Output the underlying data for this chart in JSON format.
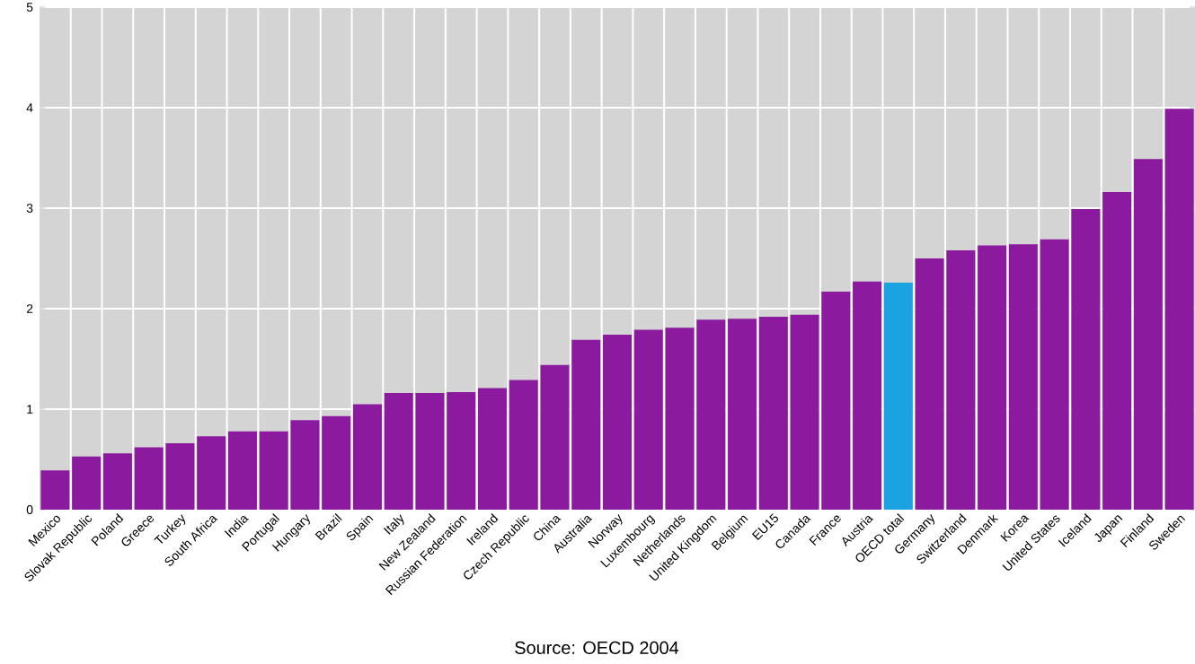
{
  "chart_data": {
    "type": "bar",
    "categories": [
      "Mexico",
      "Slovak Republic",
      "Poland",
      "Greece",
      "Turkey",
      "South Africa",
      "India",
      "Portugal",
      "Hungary",
      "Brazil",
      "Spain",
      "Italy",
      "New Zealand",
      "Russian Federation",
      "Ireland",
      "Czech Republic",
      "China",
      "Australia",
      "Norway",
      "Luxembourg",
      "Netherlands",
      "United Kingdom",
      "Belgium",
      "EU15",
      "Canada",
      "France",
      "Austria",
      "OECD total",
      "Germany",
      "Switzerland",
      "Denmark",
      "Korea",
      "United States",
      "Iceland",
      "Japan",
      "Finland",
      "Sweden"
    ],
    "values": [
      0.39,
      0.53,
      0.56,
      0.62,
      0.66,
      0.73,
      0.78,
      0.78,
      0.89,
      0.93,
      1.05,
      1.16,
      1.16,
      1.17,
      1.21,
      1.29,
      1.44,
      1.69,
      1.74,
      1.79,
      1.81,
      1.89,
      1.9,
      1.92,
      1.94,
      2.17,
      2.27,
      2.26,
      2.5,
      2.58,
      2.63,
      2.64,
      2.69,
      2.99,
      3.16,
      3.49,
      3.99
    ],
    "colors": [
      "#8b1a9e",
      "#8b1a9e",
      "#8b1a9e",
      "#8b1a9e",
      "#8b1a9e",
      "#8b1a9e",
      "#8b1a9e",
      "#8b1a9e",
      "#8b1a9e",
      "#8b1a9e",
      "#8b1a9e",
      "#8b1a9e",
      "#8b1a9e",
      "#8b1a9e",
      "#8b1a9e",
      "#8b1a9e",
      "#8b1a9e",
      "#8b1a9e",
      "#8b1a9e",
      "#8b1a9e",
      "#8b1a9e",
      "#8b1a9e",
      "#8b1a9e",
      "#8b1a9e",
      "#8b1a9e",
      "#8b1a9e",
      "#8b1a9e",
      "#1aa3e0",
      "#8b1a9e",
      "#8b1a9e",
      "#8b1a9e",
      "#8b1a9e",
      "#8b1a9e",
      "#8b1a9e",
      "#8b1a9e",
      "#8b1a9e",
      "#8b1a9e"
    ],
    "ylim": [
      0,
      5
    ],
    "yticks": [
      0,
      1,
      2,
      3,
      4,
      5
    ],
    "grid": true,
    "annotations": [
      "Source: OECD 2004"
    ]
  }
}
